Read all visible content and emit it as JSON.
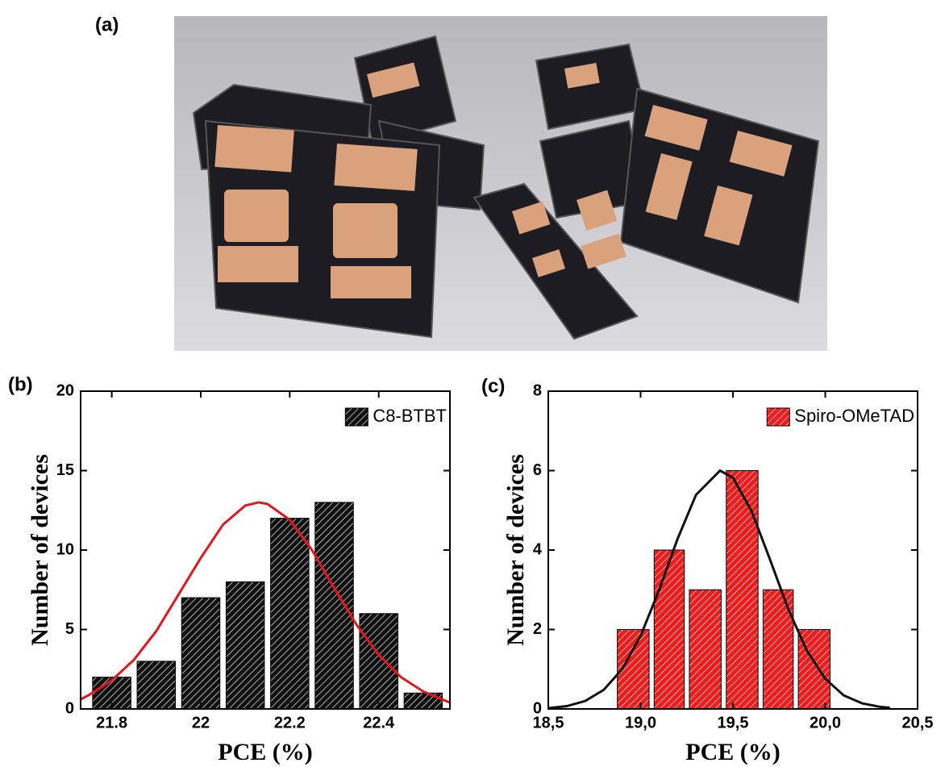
{
  "panel_label": "(a)",
  "chart_data": [
    {
      "type": "histogram",
      "panel_label": "(b)",
      "x_label": "PCE (%)",
      "y_label": "Number of devices",
      "bins": [
        21.75,
        21.85,
        21.95,
        22.05,
        22.15,
        22.25,
        22.35,
        22.45,
        22.55
      ],
      "series": [
        {
          "name": "C8-BTBT",
          "color": "#111111",
          "values": [
            2,
            3,
            7,
            8,
            12,
            13,
            6,
            1
          ]
        }
      ],
      "fit": {
        "color": "#e8141b",
        "x": [
          21.73,
          21.75,
          21.8,
          21.85,
          21.9,
          21.95,
          22.0,
          22.05,
          22.1,
          22.13,
          22.15,
          22.2,
          22.25,
          22.3,
          22.35,
          22.4,
          22.45,
          22.5,
          22.56
        ],
        "values": [
          0.6,
          0.9,
          1.8,
          3.1,
          4.9,
          7.2,
          9.5,
          11.6,
          12.8,
          13,
          12.9,
          11.9,
          10,
          7.6,
          5.3,
          3.4,
          2,
          1.1,
          0.4
        ]
      },
      "xlim": [
        21.73,
        22.56
      ],
      "ylim": [
        0,
        20
      ],
      "xticks": [
        21.8,
        22.0,
        22.2,
        22.4
      ],
      "yticks": [
        0,
        5,
        10,
        15,
        20
      ],
      "legend": "upper right"
    },
    {
      "type": "histogram",
      "panel_label": "(c)",
      "x_label": "PCE (%)",
      "y_label": "Number of devices",
      "bins": [
        18.86,
        19.06,
        19.25,
        19.45,
        19.65,
        19.84,
        20.04
      ],
      "series": [
        {
          "name": "Spiro-OMeTAD",
          "color": "#ee1c1c",
          "values": [
            2,
            4,
            3,
            6,
            3,
            2
          ]
        }
      ],
      "fit": {
        "color": "#111111",
        "x": [
          18.5,
          18.6,
          18.7,
          18.8,
          18.9,
          19.0,
          19.1,
          19.2,
          19.3,
          19.43,
          19.5,
          19.6,
          19.7,
          19.8,
          19.9,
          20.0,
          20.1,
          20.2,
          20.3,
          20.35
        ],
        "values": [
          0.02,
          0.07,
          0.2,
          0.48,
          1,
          1.84,
          2.99,
          4.28,
          5.39,
          6,
          5.82,
          4.99,
          3.77,
          2.51,
          1.47,
          0.76,
          0.34,
          0.14,
          0.05,
          0.03
        ]
      },
      "xlim": [
        18.5,
        20.5
      ],
      "ylim": [
        0,
        8
      ],
      "xticks": [
        {
          "value": 18.5,
          "label": "18,5"
        },
        {
          "value": 19.0,
          "label": "19,0"
        },
        {
          "value": 19.5,
          "label": "19,5"
        },
        {
          "value": 20.0,
          "label": "20,0"
        },
        {
          "value": 20.5,
          "label": "20,5"
        }
      ],
      "yticks": [
        0,
        2,
        4,
        6,
        8
      ],
      "legend": "upper right"
    }
  ]
}
